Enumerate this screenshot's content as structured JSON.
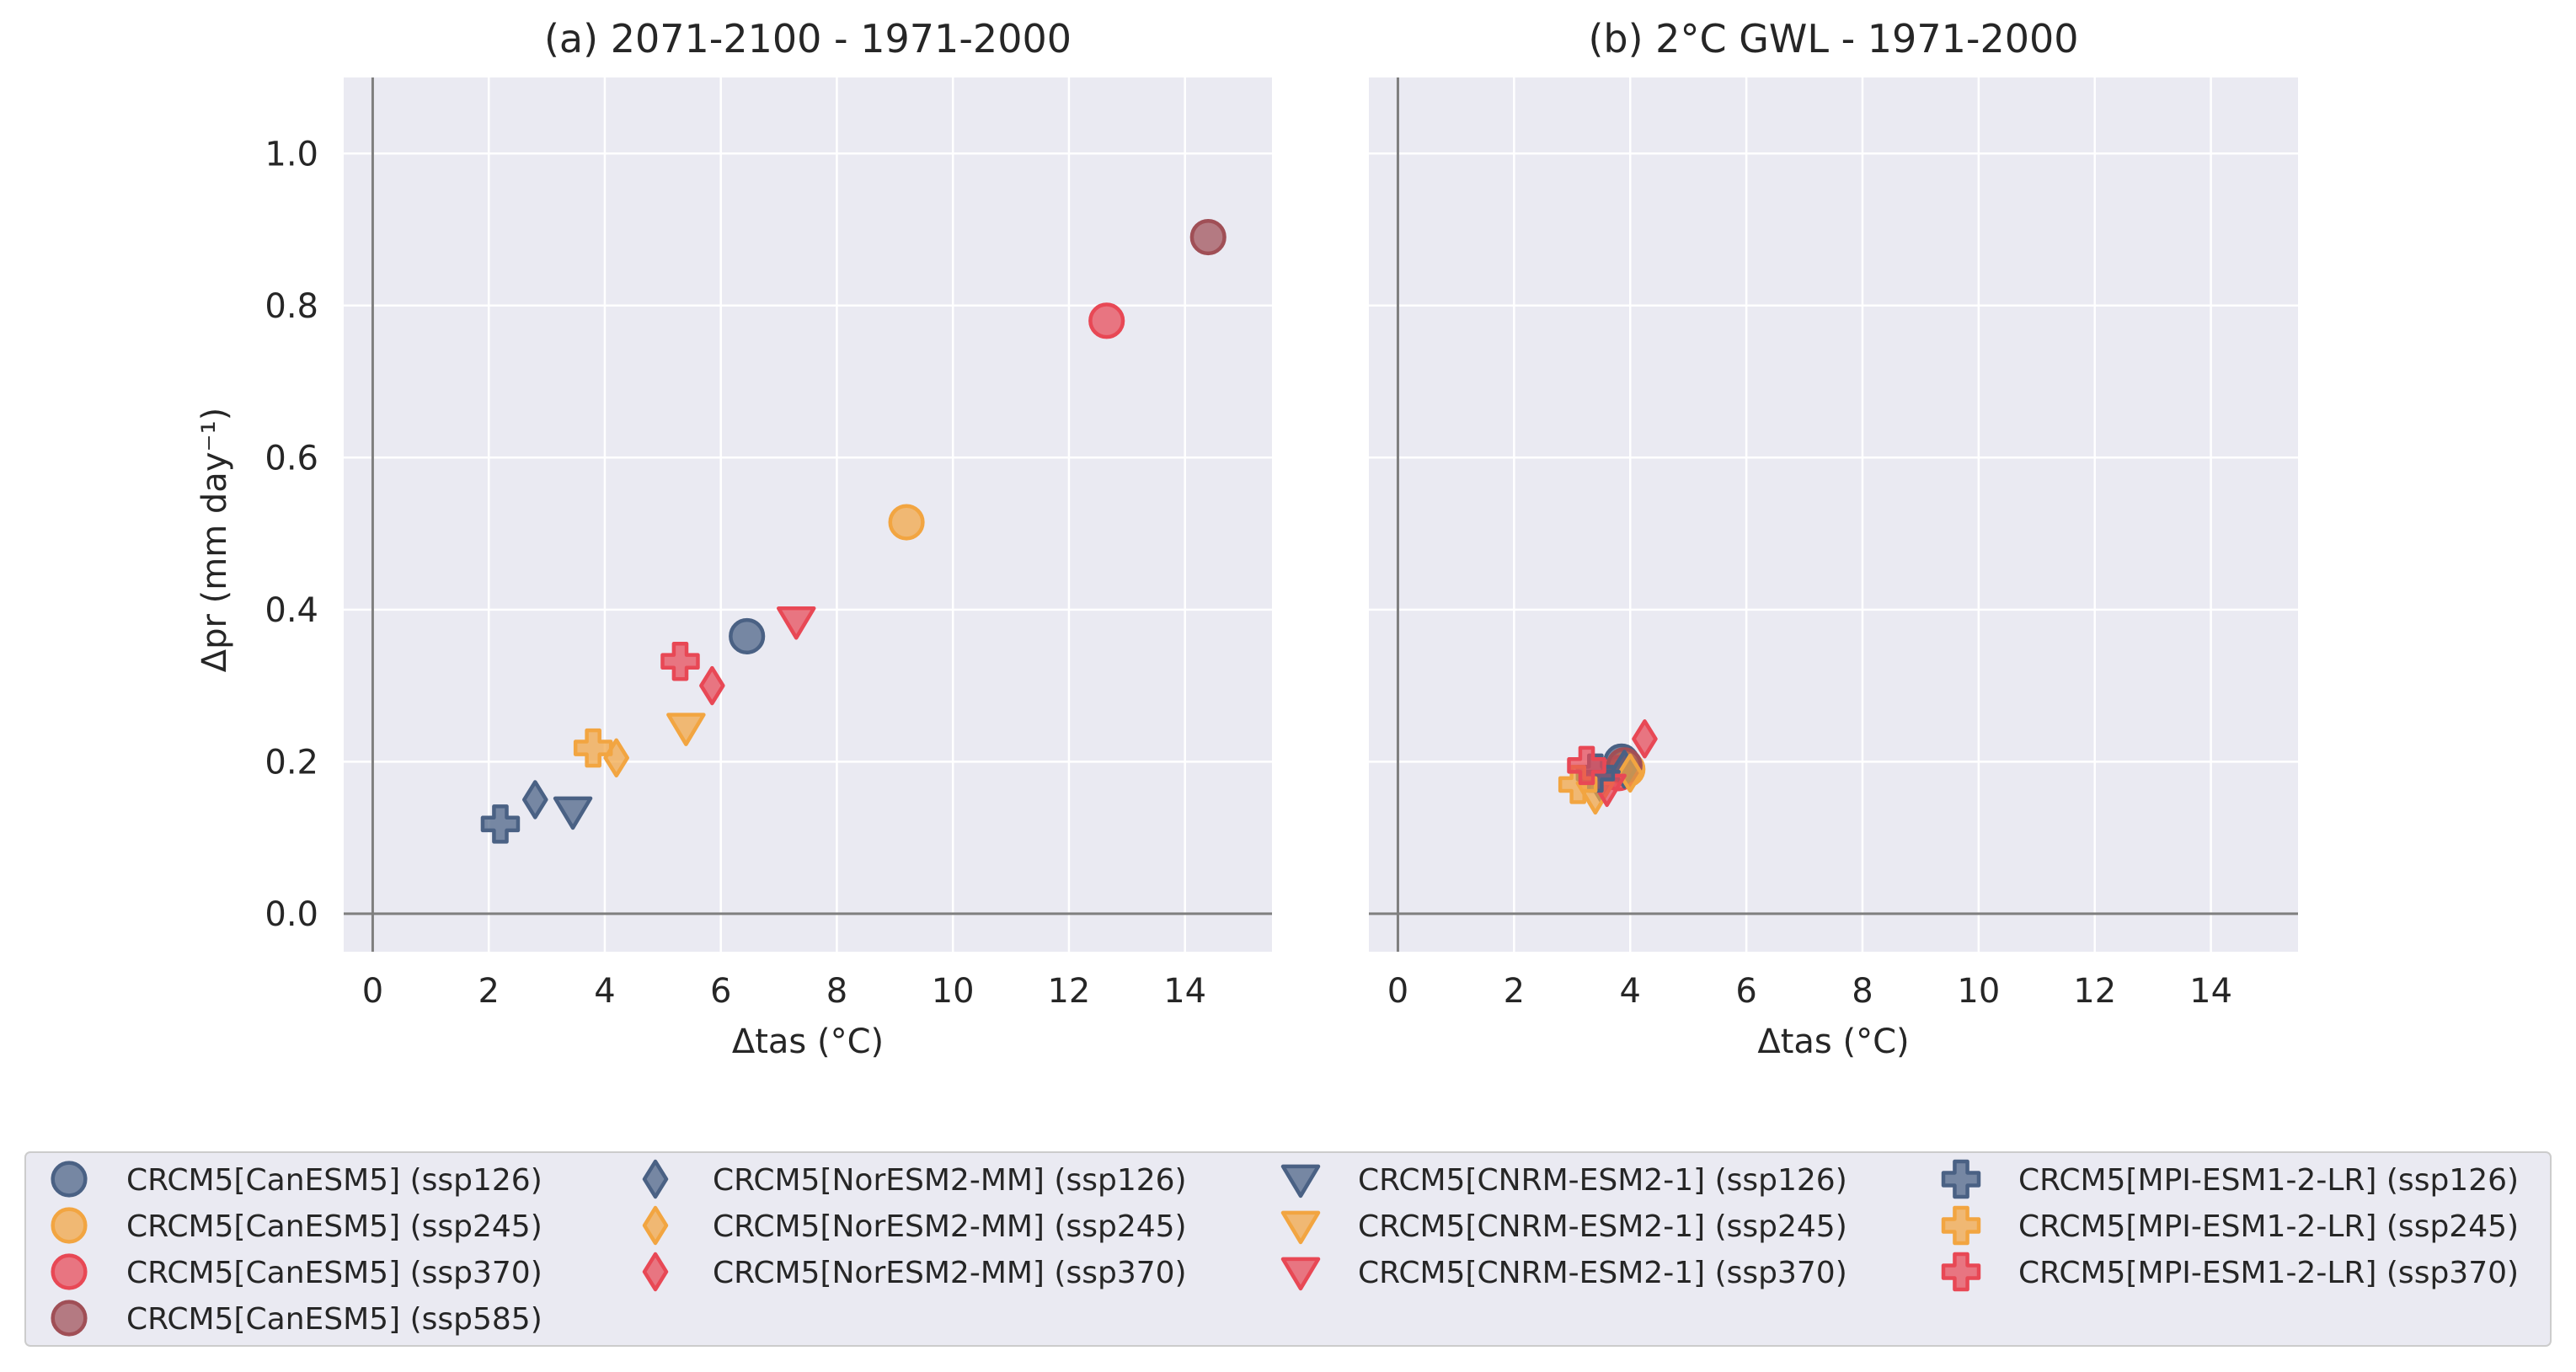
{
  "colors": {
    "ssp126": "#4a6184",
    "ssp245": "#f2a541",
    "ssp370": "#e84855",
    "ssp585": "#a04f56",
    "axes_bg": "#eaeaf2",
    "grid": "#ffffff",
    "zero_line": "#7f7f7f"
  },
  "marker_shapes": {
    "CanESM5": "circle",
    "NorESM2-MM": "diamond",
    "CNRM-ESM2-1": "triangle-down",
    "MPI-ESM1-2-LR": "plus"
  },
  "chart_data": [
    {
      "type": "scatter",
      "title": "(a) 2071-2100 - 1971-2000",
      "xlabel": "Δtas (°C)",
      "ylabel": "Δpr (mm day⁻¹)",
      "xlim": [
        -0.5,
        15.5
      ],
      "ylim": [
        -0.05,
        1.1
      ],
      "xticks": [
        "0",
        "2",
        "4",
        "6",
        "8",
        "10",
        "12",
        "14"
      ],
      "yticks": [
        "0.0",
        "0.2",
        "0.4",
        "0.6",
        "0.8",
        "1.0"
      ],
      "grid": true,
      "points": [
        {
          "model": "CanESM5",
          "scenario": "ssp126",
          "x": 6.45,
          "y": 0.365
        },
        {
          "model": "CanESM5",
          "scenario": "ssp245",
          "x": 9.2,
          "y": 0.515
        },
        {
          "model": "CanESM5",
          "scenario": "ssp370",
          "x": 12.65,
          "y": 0.78
        },
        {
          "model": "CanESM5",
          "scenario": "ssp585",
          "x": 14.4,
          "y": 0.89
        },
        {
          "model": "NorESM2-MM",
          "scenario": "ssp126",
          "x": 2.8,
          "y": 0.15
        },
        {
          "model": "NorESM2-MM",
          "scenario": "ssp245",
          "x": 4.2,
          "y": 0.205
        },
        {
          "model": "NorESM2-MM",
          "scenario": "ssp370",
          "x": 5.85,
          "y": 0.3
        },
        {
          "model": "CNRM-ESM2-1",
          "scenario": "ssp126",
          "x": 3.45,
          "y": 0.135
        },
        {
          "model": "CNRM-ESM2-1",
          "scenario": "ssp245",
          "x": 5.4,
          "y": 0.245
        },
        {
          "model": "CNRM-ESM2-1",
          "scenario": "ssp370",
          "x": 7.3,
          "y": 0.385
        },
        {
          "model": "MPI-ESM1-2-LR",
          "scenario": "ssp126",
          "x": 2.2,
          "y": 0.118
        },
        {
          "model": "MPI-ESM1-2-LR",
          "scenario": "ssp245",
          "x": 3.8,
          "y": 0.218
        },
        {
          "model": "MPI-ESM1-2-LR",
          "scenario": "ssp370",
          "x": 5.3,
          "y": 0.332
        }
      ]
    },
    {
      "type": "scatter",
      "title": "(b) 2°C GWL - 1971-2000",
      "xlabel": "Δtas (°C)",
      "ylabel": "",
      "xlim": [
        -0.5,
        15.5
      ],
      "ylim": [
        -0.05,
        1.1
      ],
      "xticks": [
        "0",
        "2",
        "4",
        "6",
        "8",
        "10",
        "12",
        "14"
      ],
      "yticks": [],
      "grid": true,
      "points": [
        {
          "model": "CanESM5",
          "scenario": "ssp126",
          "x": 3.85,
          "y": 0.2
        },
        {
          "model": "CanESM5",
          "scenario": "ssp245",
          "x": 3.95,
          "y": 0.19
        },
        {
          "model": "CanESM5",
          "scenario": "ssp370",
          "x": 3.8,
          "y": 0.185
        },
        {
          "model": "CanESM5",
          "scenario": "ssp585",
          "x": 3.9,
          "y": 0.195
        },
        {
          "model": "NorESM2-MM",
          "scenario": "ssp126",
          "x": 3.9,
          "y": 0.19
        },
        {
          "model": "NorESM2-MM",
          "scenario": "ssp245",
          "x": 4.0,
          "y": 0.185
        },
        {
          "model": "NorESM2-MM",
          "scenario": "ssp370",
          "x": 4.25,
          "y": 0.23
        },
        {
          "model": "CNRM-ESM2-1",
          "scenario": "ssp126",
          "x": 3.5,
          "y": 0.17
        },
        {
          "model": "CNRM-ESM2-1",
          "scenario": "ssp245",
          "x": 3.4,
          "y": 0.155
        },
        {
          "model": "CNRM-ESM2-1",
          "scenario": "ssp370",
          "x": 3.6,
          "y": 0.165
        },
        {
          "model": "MPI-ESM1-2-LR",
          "scenario": "ssp126",
          "x": 3.4,
          "y": 0.185
        },
        {
          "model": "MPI-ESM1-2-LR",
          "scenario": "ssp245",
          "x": 3.1,
          "y": 0.17
        },
        {
          "model": "MPI-ESM1-2-LR",
          "scenario": "ssp370",
          "x": 3.25,
          "y": 0.195
        }
      ]
    }
  ],
  "legend": {
    "placement": "bottom",
    "columns": [
      [
        {
          "label": "CRCM5[CanESM5] (ssp126)",
          "model": "CanESM5",
          "scenario": "ssp126"
        },
        {
          "label": "CRCM5[CanESM5] (ssp245)",
          "model": "CanESM5",
          "scenario": "ssp245"
        },
        {
          "label": "CRCM5[CanESM5] (ssp370)",
          "model": "CanESM5",
          "scenario": "ssp370"
        },
        {
          "label": "CRCM5[CanESM5] (ssp585)",
          "model": "CanESM5",
          "scenario": "ssp585"
        }
      ],
      [
        {
          "label": "CRCM5[NorESM2-MM] (ssp126)",
          "model": "NorESM2-MM",
          "scenario": "ssp126"
        },
        {
          "label": "CRCM5[NorESM2-MM] (ssp245)",
          "model": "NorESM2-MM",
          "scenario": "ssp245"
        },
        {
          "label": "CRCM5[NorESM2-MM] (ssp370)",
          "model": "NorESM2-MM",
          "scenario": "ssp370"
        }
      ],
      [
        {
          "label": "CRCM5[CNRM-ESM2-1] (ssp126)",
          "model": "CNRM-ESM2-1",
          "scenario": "ssp126"
        },
        {
          "label": "CRCM5[CNRM-ESM2-1] (ssp245)",
          "model": "CNRM-ESM2-1",
          "scenario": "ssp245"
        },
        {
          "label": "CRCM5[CNRM-ESM2-1] (ssp370)",
          "model": "CNRM-ESM2-1",
          "scenario": "ssp370"
        }
      ],
      [
        {
          "label": "CRCM5[MPI-ESM1-2-LR] (ssp126)",
          "model": "MPI-ESM1-2-LR",
          "scenario": "ssp126"
        },
        {
          "label": "CRCM5[MPI-ESM1-2-LR] (ssp245)",
          "model": "MPI-ESM1-2-LR",
          "scenario": "ssp245"
        },
        {
          "label": "CRCM5[MPI-ESM1-2-LR] (ssp370)",
          "model": "MPI-ESM1-2-LR",
          "scenario": "ssp370"
        }
      ]
    ]
  }
}
